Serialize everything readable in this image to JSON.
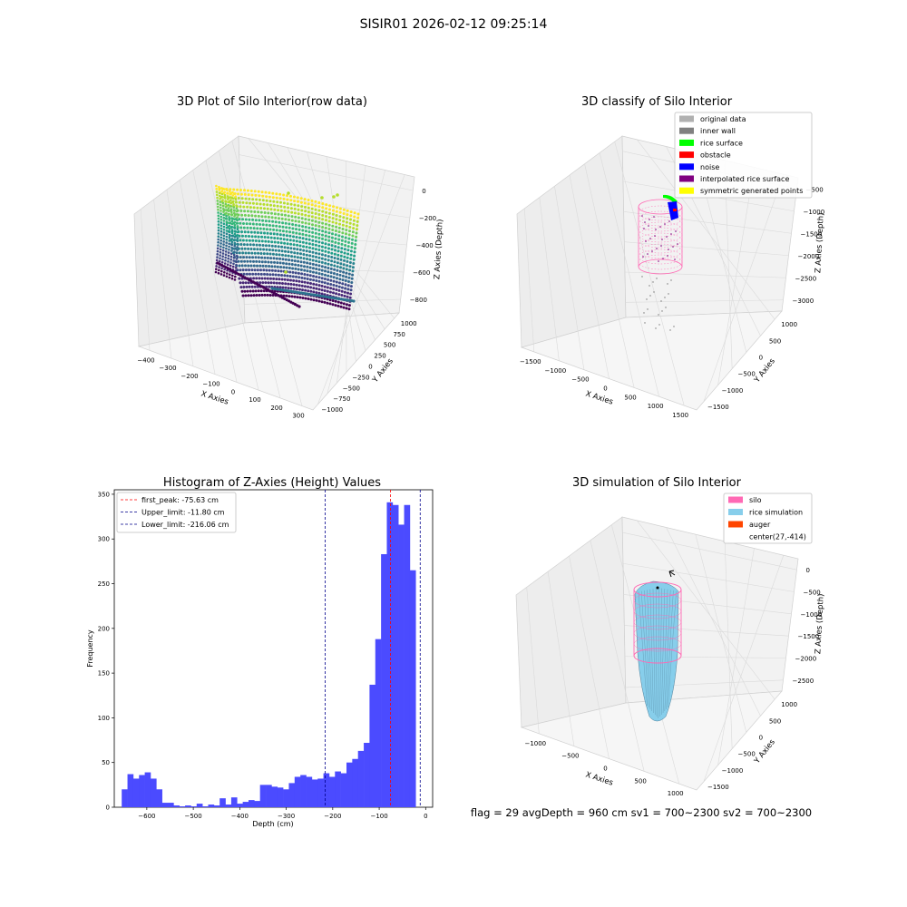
{
  "figure_title": "SISIR01 2026-02-12 09:25:14",
  "footer_text": "flag = 29  avgDepth = 960 cm  sv1 = 700~2300  sv2 = 700~2300",
  "colors": {
    "viridis_low": "#440154",
    "viridis_mid": "#21918c",
    "viridis_high": "#fde725",
    "hist_bar": "#4b4bff",
    "silo_pink": "#ff69b4",
    "rice_blue": "#87ceeb",
    "auger_orange": "#ff4500"
  },
  "chart_data": [
    {
      "type": "scatter",
      "projection": "3d",
      "title": "3D Plot of Silo Interior(row data)",
      "xlabel": "X Axies",
      "ylabel": "Y Axies",
      "zlabel": "Z Axies (Depth)",
      "x_ticks": [
        "−400",
        "−300",
        "−200",
        "−100",
        "0",
        "100",
        "200",
        "300"
      ],
      "y_ticks": [
        "−1000",
        "−750",
        "−500",
        "−250",
        "0",
        "250",
        "500",
        "750",
        "1000"
      ],
      "z_ticks": [
        "−800",
        "−600",
        "−400",
        "−200",
        "0"
      ],
      "xlim": [
        -450,
        300
      ],
      "ylim": [
        -1000,
        1000
      ],
      "zlim": [
        -850,
        0
      ],
      "colormap": "viridis",
      "grid": true
    },
    {
      "type": "scatter",
      "projection": "3d",
      "title": "3D classify of Silo Interior",
      "xlabel": "X Axies",
      "ylabel": "Y Axies",
      "zlabel": "Z Axies (Depth)",
      "x_ticks": [
        "−1500",
        "−1000",
        "−500",
        "0",
        "500",
        "1000",
        "1500"
      ],
      "y_ticks": [
        "−1500",
        "−1000",
        "−500",
        "0",
        "500",
        "1000"
      ],
      "z_ticks": [
        "−3000",
        "−2500",
        "−2000",
        "−1500",
        "−1000",
        "−500"
      ],
      "xlim": [
        -1500,
        1500
      ],
      "ylim": [
        -1500,
        1000
      ],
      "zlim": [
        -3000,
        0
      ],
      "legend_position": "top-right",
      "legend": [
        {
          "label": "original data",
          "color": "#b0b0b0"
        },
        {
          "label": "inner wall",
          "color": "#808080"
        },
        {
          "label": "rice surface",
          "color": "#00ff00"
        },
        {
          "label": "obstacle",
          "color": "#ff0000"
        },
        {
          "label": "noise",
          "color": "#0000ff"
        },
        {
          "label": "interpolated rice surface",
          "color": "#800080"
        },
        {
          "label": "symmetric generated points",
          "color": "#ffff00"
        }
      ],
      "grid": true
    },
    {
      "type": "bar",
      "title": "Histogram of Z-Axies (Height) Values",
      "xlabel": "Depth (cm)",
      "ylabel": "Frequency",
      "bin_width": 12.4,
      "bin_start": -654,
      "values": [
        20,
        37,
        32,
        36,
        39,
        32,
        20,
        5,
        5,
        2,
        1,
        2,
        1,
        4,
        1,
        3,
        2,
        10,
        3,
        11,
        4,
        6,
        8,
        7,
        25,
        25,
        23,
        22,
        20,
        27,
        34,
        36,
        34,
        31,
        32,
        38,
        34,
        40,
        38,
        50,
        54,
        63,
        72,
        137,
        188,
        283,
        341,
        338,
        316,
        338,
        265
      ],
      "xlim": [
        -670,
        15
      ],
      "ylim": [
        0,
        355
      ],
      "x_ticks": [
        -600,
        -500,
        -400,
        -300,
        -200,
        -100,
        0
      ],
      "x_tick_labels": [
        "−600",
        "−500",
        "−400",
        "−300",
        "−200",
        "−100",
        "0"
      ],
      "y_ticks": [
        0,
        50,
        100,
        150,
        200,
        250,
        300,
        350
      ],
      "y_tick_labels": [
        "0",
        "50",
        "100",
        "150",
        "200",
        "250",
        "300",
        "350"
      ],
      "lines": [
        {
          "label": "first_peak: -75.63 cm",
          "x": -75.63,
          "color": "#ff0000"
        },
        {
          "label": "Upper_limit: -11.80 cm",
          "x": -11.8,
          "color": "#00008b"
        },
        {
          "label": "Lower_limit: -216.06 cm",
          "x": -216.06,
          "color": "#00008b"
        }
      ],
      "legend_position": "top-left",
      "grid": false
    },
    {
      "type": "surface",
      "projection": "3d",
      "title": "3D simulation of Silo Interior",
      "xlabel": "X Axies",
      "ylabel": "Y Axies",
      "zlabel": "Z Axies (Depth)",
      "x_ticks": [
        "−1000",
        "−500",
        "0",
        "500",
        "1000"
      ],
      "y_ticks": [
        "−1500",
        "−1000",
        "−500",
        "0",
        "500",
        "1000"
      ],
      "z_ticks": [
        "−2500",
        "−2000",
        "−1500",
        "−1000",
        "−500",
        "0"
      ],
      "xlim": [
        -1200,
        1200
      ],
      "ylim": [
        -1500,
        1000
      ],
      "zlim": [
        -2700,
        0
      ],
      "legend_position": "top-right",
      "legend": [
        {
          "label": "silo",
          "color": "#ff69b4",
          "marker": "patch"
        },
        {
          "label": "rice simulation",
          "color": "#87ceeb",
          "marker": "patch"
        },
        {
          "label": "auger",
          "color": "#ff4500",
          "marker": "patch"
        },
        {
          "label": "center(27,-414)",
          "color": "",
          "marker": "none"
        }
      ],
      "center": [
        27,
        -414
      ],
      "grid": true
    }
  ]
}
